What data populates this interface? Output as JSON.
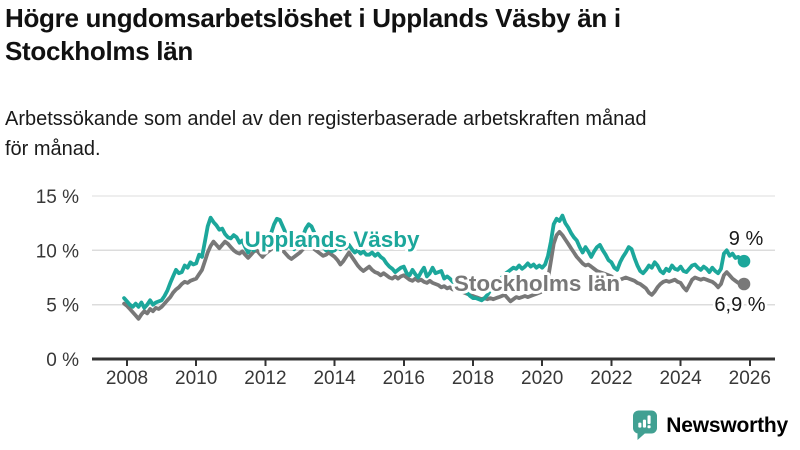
{
  "header": {
    "title_line1": "Högre ungdomsarbetslöshet i Upplands Väsby än i",
    "title_line2": "Stockholms län",
    "subtitle_line1": "Arbetssökande som andel av den registerbaserade arbetskraften månad",
    "subtitle_line2": "för månad."
  },
  "footer": {
    "logo_text": "Newsworthy"
  },
  "colors": {
    "accent_teal": "#1CA79B",
    "series_gray": "#787878",
    "gridline": "#dcdcdc",
    "axis": "#333333",
    "tick_text": "#383838",
    "annotation_text": "#1a1a1a",
    "title_text": "#111111",
    "logo_teal": "#41A092"
  },
  "chart_data": {
    "type": "line",
    "title": "Högre ungdomsarbetslöshet i Upplands Väsby än i Stockholms län",
    "subtitle": "Arbetssökande som andel av den registerbaserade arbetskraften månad för månad.",
    "xlabel": "",
    "ylabel": "%",
    "ylim": [
      0,
      15
    ],
    "grid": true,
    "legend_position": "inline-labels",
    "y_ticks": [
      {
        "value": 0,
        "label": "0 %"
      },
      {
        "value": 5,
        "label": "5 %"
      },
      {
        "value": 10,
        "label": "10 %"
      },
      {
        "value": 15,
        "label": "15 %"
      }
    ],
    "x_ticks": [
      2008,
      2010,
      2012,
      2014,
      2016,
      2018,
      2020,
      2022,
      2024,
      2026
    ],
    "x_start": 2007.9167,
    "x_step": 0.0833333,
    "series": [
      {
        "name": "Upplands Väsby",
        "color": "#1CA79B",
        "end_label": "9 %",
        "end_value": 9.0,
        "values": [
          5.6,
          5.3,
          5.0,
          4.8,
          5.1,
          4.8,
          5.2,
          4.7,
          5.0,
          5.4,
          5.0,
          5.2,
          5.3,
          5.4,
          5.8,
          6.3,
          7.0,
          7.6,
          8.2,
          7.9,
          8.0,
          8.6,
          8.4,
          8.9,
          8.7,
          8.8,
          9.6,
          9.4,
          10.8,
          12.2,
          13.0,
          12.6,
          12.3,
          11.9,
          12.0,
          11.5,
          11.2,
          11.1,
          11.4,
          11.2,
          10.7,
          10.9,
          10.3,
          9.8,
          10.3,
          10.0,
          10.8,
          10.7,
          10.9,
          11.2,
          11.0,
          11.6,
          12.4,
          12.9,
          12.8,
          12.2,
          11.6,
          11.0,
          10.4,
          10.1,
          10.5,
          10.8,
          11.3,
          12.0,
          12.4,
          12.2,
          11.6,
          11.0,
          10.6,
          10.3,
          10.0,
          10.2,
          9.9,
          10.0,
          10.3,
          10.1,
          10.4,
          10.2,
          10.5,
          10.1,
          9.8,
          10.0,
          9.7,
          9.9,
          9.6,
          9.6,
          9.8,
          9.5,
          9.7,
          9.4,
          9.2,
          8.8,
          8.5,
          8.3,
          8.0,
          8.2,
          8.4,
          8.5,
          7.9,
          7.7,
          8.2,
          7.8,
          7.5,
          8.0,
          8.4,
          7.6,
          7.9,
          8.4,
          7.9,
          8.0,
          8.1,
          7.4,
          7.6,
          7.4,
          7.1,
          7.0,
          6.8,
          6.5,
          6.3,
          6.1,
          5.8,
          5.6,
          5.6,
          5.5,
          5.4,
          5.6,
          5.9,
          6.3,
          6.6,
          6.9,
          7.2,
          7.5,
          7.8,
          8.0,
          8.2,
          8.4,
          8.3,
          8.6,
          8.3,
          8.5,
          8.8,
          8.5,
          8.7,
          8.4,
          8.6,
          8.4,
          8.7,
          9.5,
          10.8,
          12.4,
          12.9,
          12.7,
          13.2,
          12.5,
          12.1,
          11.6,
          11.2,
          10.9,
          10.3,
          9.8,
          10.3,
          9.9,
          9.4,
          9.9,
          10.3,
          10.5,
          10.0,
          9.6,
          9.1,
          8.9,
          8.4,
          8.2,
          8.9,
          9.4,
          9.8,
          10.3,
          10.1,
          9.3,
          8.6,
          8.1,
          7.9,
          8.2,
          8.6,
          8.4,
          8.9,
          8.6,
          8.1,
          7.9,
          8.3,
          8.1,
          8.6,
          8.3,
          8.2,
          8.5,
          8.1,
          8.0,
          8.3,
          8.6,
          8.7,
          8.4,
          8.2,
          8.5,
          8.3,
          8.0,
          8.4,
          8.1,
          7.9,
          8.3,
          9.7,
          10.0,
          9.5,
          9.7,
          9.3,
          9.4,
          9.1,
          9.0
        ]
      },
      {
        "name": "Stockholms län",
        "color": "#787878",
        "end_label": "6,9 %",
        "end_value": 6.9,
        "values": [
          5.1,
          4.9,
          4.6,
          4.3,
          4.0,
          3.7,
          4.1,
          4.4,
          4.2,
          4.6,
          4.4,
          4.7,
          4.6,
          4.8,
          5.1,
          5.4,
          5.7,
          6.1,
          6.4,
          6.6,
          6.9,
          7.1,
          7.0,
          7.2,
          7.3,
          7.4,
          7.8,
          8.2,
          9.0,
          9.8,
          10.4,
          10.8,
          10.5,
          10.2,
          10.5,
          10.8,
          10.6,
          10.3,
          10.0,
          9.8,
          9.7,
          9.9,
          9.6,
          9.3,
          9.6,
          9.9,
          10.0,
          9.7,
          9.4,
          9.7,
          9.9,
          10.1,
          10.4,
          10.6,
          10.3,
          10.0,
          9.7,
          9.4,
          9.2,
          9.4,
          9.6,
          9.8,
          10.1,
          10.4,
          10.6,
          10.4,
          10.1,
          9.9,
          9.7,
          9.5,
          9.6,
          9.8,
          9.6,
          9.4,
          9.1,
          8.7,
          9.0,
          9.4,
          9.8,
          9.4,
          9.0,
          8.6,
          8.3,
          8.1,
          8.3,
          8.5,
          8.2,
          8.0,
          7.9,
          7.7,
          7.9,
          7.7,
          7.5,
          7.4,
          7.6,
          7.4,
          7.6,
          7.7,
          7.5,
          7.3,
          7.2,
          7.4,
          7.2,
          7.3,
          7.1,
          7.0,
          7.2,
          7.0,
          6.9,
          6.8,
          6.6,
          6.7,
          6.5,
          6.6,
          6.4,
          6.5,
          6.3,
          6.2,
          6.1,
          6.0,
          5.9,
          5.8,
          5.7,
          5.6,
          5.5,
          5.6,
          5.5,
          5.6,
          5.5,
          5.6,
          5.7,
          5.8,
          5.9,
          5.6,
          5.3,
          5.5,
          5.7,
          5.6,
          5.7,
          5.8,
          5.7,
          5.8,
          5.9,
          6.0,
          6.1,
          6.2,
          6.5,
          7.4,
          9.0,
          10.6,
          11.4,
          11.7,
          11.4,
          11.0,
          10.6,
          10.2,
          9.8,
          9.4,
          9.1,
          8.8,
          8.6,
          8.7,
          8.5,
          8.3,
          8.1,
          8.0,
          7.9,
          7.8,
          7.7,
          7.6,
          7.4,
          7.2,
          7.3,
          7.4,
          7.5,
          7.4,
          7.3,
          7.2,
          7.0,
          6.9,
          6.7,
          6.5,
          6.1,
          5.9,
          6.2,
          6.6,
          6.9,
          7.1,
          7.2,
          7.1,
          7.2,
          7.3,
          7.1,
          7.0,
          6.6,
          6.3,
          6.8,
          7.3,
          7.5,
          7.4,
          7.3,
          7.4,
          7.3,
          7.2,
          7.1,
          6.9,
          6.6,
          6.9,
          7.7,
          8.0,
          7.7,
          7.4,
          7.2,
          7.0,
          6.9,
          6.9
        ]
      }
    ]
  }
}
